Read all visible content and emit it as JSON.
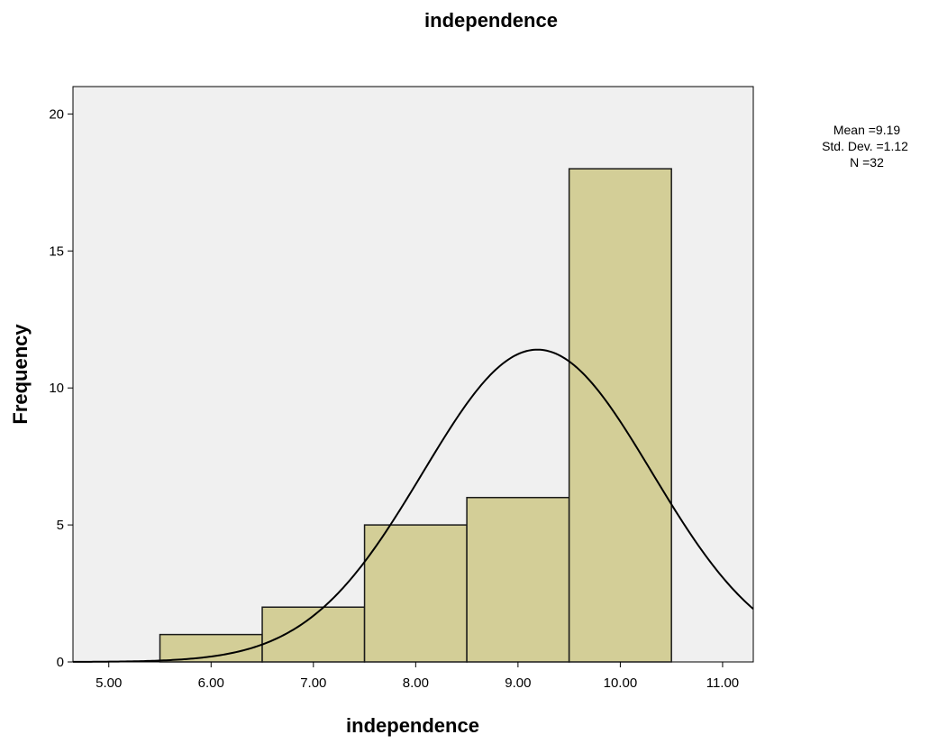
{
  "chart_data": {
    "type": "bar",
    "title": "independence",
    "xlabel": "independence",
    "ylabel": "Frequency",
    "xlim": [
      4.65,
      11.3
    ],
    "ylim": [
      0,
      21
    ],
    "x_ticks": [
      "5.00",
      "6.00",
      "7.00",
      "8.00",
      "9.00",
      "10.00",
      "11.00"
    ],
    "y_ticks": [
      "0",
      "5",
      "10",
      "15",
      "20"
    ],
    "bins": [
      {
        "start": 5.5,
        "end": 6.5,
        "count": 1
      },
      {
        "start": 6.5,
        "end": 7.5,
        "count": 2
      },
      {
        "start": 7.5,
        "end": 8.5,
        "count": 5
      },
      {
        "start": 8.5,
        "end": 9.5,
        "count": 6
      },
      {
        "start": 9.5,
        "end": 10.5,
        "count": 18
      }
    ],
    "normal_curve": {
      "mean": 9.19,
      "sd": 1.12,
      "n": 32,
      "bin_width": 1
    },
    "stats": {
      "mean_label": "Mean =9.19",
      "sd_label": "Std. Dev. =1.12",
      "n_label": "N =32"
    },
    "grid": false,
    "legend": "none",
    "colors": {
      "plot_bg": "#f0f0f0",
      "bar_fill": "#d3ce97",
      "bar_stroke": "#1a1a1a",
      "curve": "#000000"
    }
  }
}
